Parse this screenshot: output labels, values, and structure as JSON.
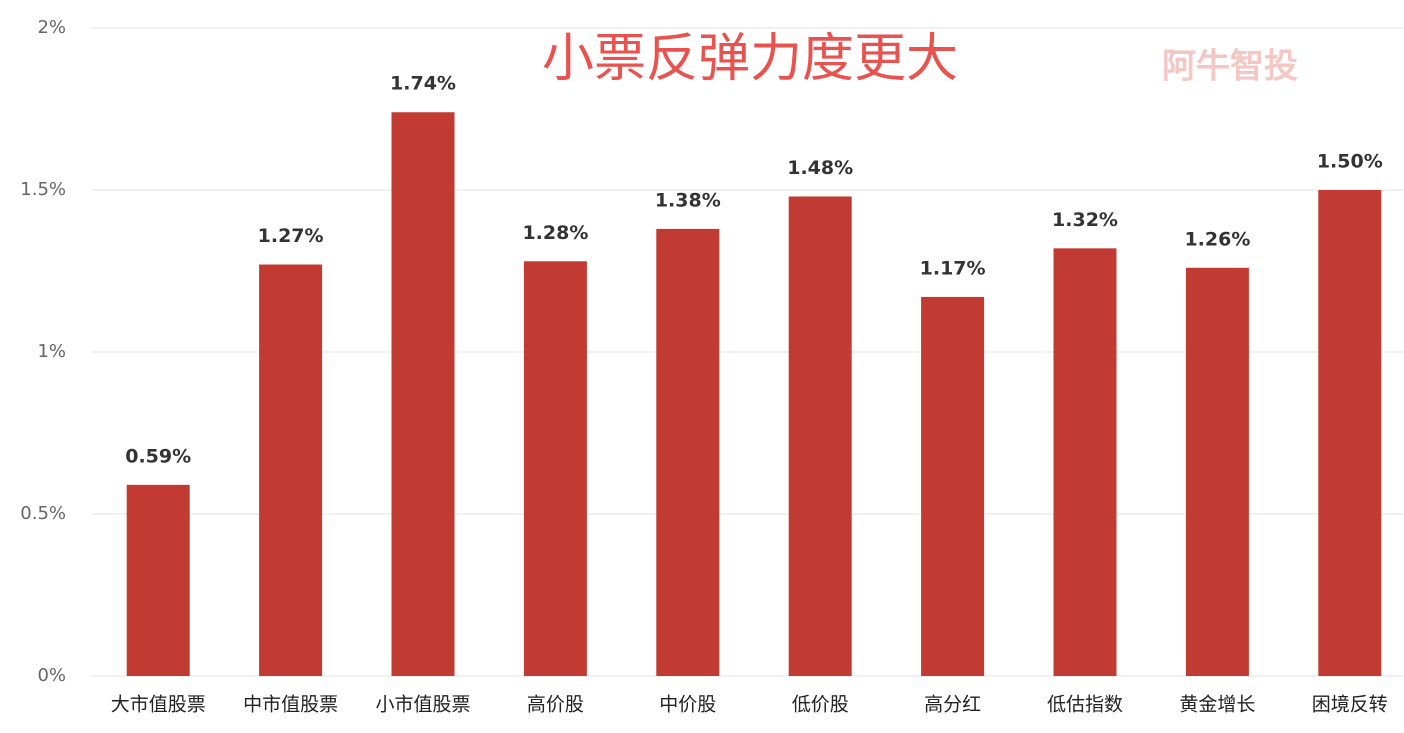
{
  "chart_data": {
    "type": "bar",
    "title": "小票反弹力度更大",
    "watermark": "阿牛智投",
    "categories": [
      "大市值股票",
      "中市值股票",
      "小市值股票",
      "高价股",
      "中价股",
      "低价股",
      "高分红",
      "低估指数",
      "黄金增长",
      "困境反转"
    ],
    "values": [
      0.59,
      1.27,
      1.74,
      1.28,
      1.38,
      1.48,
      1.17,
      1.32,
      1.26,
      1.5
    ],
    "value_labels": [
      "0.59%",
      "1.27%",
      "1.74%",
      "1.28%",
      "1.38%",
      "1.48%",
      "1.17%",
      "1.32%",
      "1.26%",
      "1.50%"
    ],
    "color": "#c13b33",
    "ylim": [
      0,
      2
    ],
    "yticks": [
      {
        "value": 0,
        "label": "0%"
      },
      {
        "value": 0.5,
        "label": "0.5%"
      },
      {
        "value": 1,
        "label": "1%"
      },
      {
        "value": 1.5,
        "label": "1.5%"
      },
      {
        "value": 2,
        "label": "2%"
      }
    ],
    "grid": true
  }
}
